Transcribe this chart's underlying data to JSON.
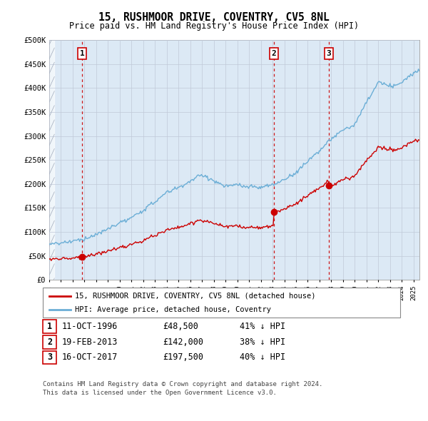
{
  "title": "15, RUSHMOOR DRIVE, COVENTRY, CV5 8NL",
  "subtitle": "Price paid vs. HM Land Registry's House Price Index (HPI)",
  "hpi_color": "#6baed6",
  "price_color": "#cc0000",
  "background_color": "#dce9f5",
  "grid_color": "#c0c8d8",
  "legend_label_price": "15, RUSHMOOR DRIVE, COVENTRY, CV5 8NL (detached house)",
  "legend_label_hpi": "HPI: Average price, detached house, Coventry",
  "sales": [
    {
      "date": 1996.79,
      "price": 48500,
      "label": "1"
    },
    {
      "date": 2013.13,
      "price": 142000,
      "label": "2"
    },
    {
      "date": 2017.79,
      "price": 197500,
      "label": "3"
    }
  ],
  "table": [
    {
      "num": "1",
      "date": "11-OCT-1996",
      "price": "£48,500",
      "hpi": "41% ↓ HPI"
    },
    {
      "num": "2",
      "date": "19-FEB-2013",
      "price": "£142,000",
      "hpi": "38% ↓ HPI"
    },
    {
      "num": "3",
      "date": "16-OCT-2017",
      "price": "£197,500",
      "hpi": "40% ↓ HPI"
    }
  ],
  "footer": "Contains HM Land Registry data © Crown copyright and database right 2024.\nThis data is licensed under the Open Government Licence v3.0.",
  "ytick_labels": [
    "£0",
    "£50K",
    "£100K",
    "£150K",
    "£200K",
    "£250K",
    "£300K",
    "£350K",
    "£400K",
    "£450K",
    "£500K"
  ],
  "yticks": [
    0,
    50000,
    100000,
    150000,
    200000,
    250000,
    300000,
    350000,
    400000,
    450000,
    500000
  ],
  "xmin": 1994.0,
  "xmax": 2025.5,
  "ymin": 0,
  "ymax": 500000
}
